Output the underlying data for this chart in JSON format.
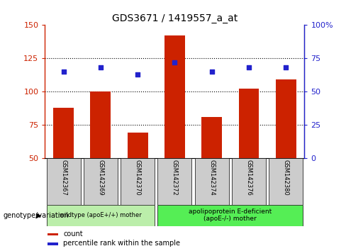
{
  "title": "GDS3671 / 1419557_a_at",
  "samples": [
    "GSM142367",
    "GSM142369",
    "GSM142370",
    "GSM142372",
    "GSM142374",
    "GSM142376",
    "GSM142380"
  ],
  "counts": [
    88,
    100,
    69,
    142,
    81,
    102,
    109
  ],
  "percentile_ranks": [
    65,
    68,
    63,
    72,
    65,
    68,
    68
  ],
  "ylim_left": [
    50,
    150
  ],
  "ylim_right": [
    0,
    100
  ],
  "yticks_left": [
    50,
    75,
    100,
    125,
    150
  ],
  "yticks_right": [
    0,
    25,
    50,
    75,
    100
  ],
  "ytick_labels_left": [
    "50",
    "75",
    "100",
    "125",
    "150"
  ],
  "ytick_labels_right": [
    "0",
    "25",
    "50",
    "75",
    "100%"
  ],
  "bar_color": "#CC2200",
  "scatter_color": "#2222CC",
  "bar_bottom": 50,
  "group1_indices": [
    0,
    1,
    2
  ],
  "group2_indices": [
    3,
    4,
    5,
    6
  ],
  "group1_label": "wildtype (apoE+/+) mother",
  "group2_label": "apolipoprotein E-deficient\n(apoE-/-) mother",
  "group1_color": "#bbeeaa",
  "group2_color": "#55ee55",
  "xlabel_left": "genotype/variation",
  "legend_count_label": "count",
  "legend_percentile_label": "percentile rank within the sample",
  "tick_bg_color": "#cccccc",
  "grid_color": "black"
}
